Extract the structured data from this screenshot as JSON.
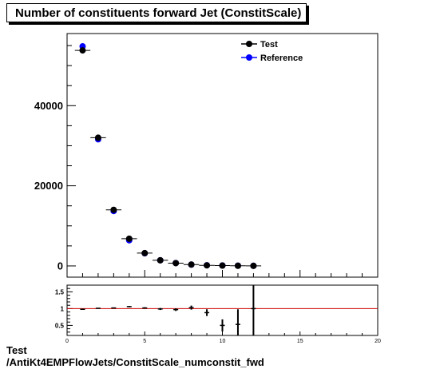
{
  "title": "Number of constituents forward Jet (ConstitScale)",
  "footer": {
    "line1": "Test",
    "line2": "/AntiKt4EMPFlowJets/ConstitScale_numconstit_fwd"
  },
  "colors": {
    "test": "#000000",
    "reference": "#0000ff",
    "ratio_line": "#cc0000"
  },
  "chart_data": [
    {
      "type": "scatter",
      "panel": "main",
      "title": "Number of constituents forward Jet (ConstitScale)",
      "xlim": [
        0,
        20
      ],
      "ylim": [
        -2800,
        58000
      ],
      "yticks": [
        0,
        20000,
        40000
      ],
      "ytick_labels": [
        "0",
        "20000",
        "40000"
      ],
      "legend_position": "top-right",
      "grid": false,
      "x": [
        1,
        2,
        3,
        4,
        5,
        6,
        7,
        8,
        9,
        10,
        11,
        12
      ],
      "series": [
        {
          "name": "Test",
          "values": [
            53800,
            32000,
            14000,
            6800,
            3200,
            1400,
            700,
            350,
            150,
            80,
            40,
            20
          ]
        },
        {
          "name": "Reference",
          "values": [
            54800,
            31600,
            13700,
            6400,
            3150,
            1420,
            720,
            340,
            170,
            120,
            75,
            30
          ]
        }
      ]
    },
    {
      "type": "scatter",
      "panel": "ratio",
      "xlim": [
        0,
        20
      ],
      "ylim": [
        0.2,
        1.7
      ],
      "xticks": [
        0,
        5,
        10,
        15,
        20
      ],
      "xtick_labels": [
        "0",
        "5",
        "10",
        "15",
        "20"
      ],
      "yticks": [
        0.5,
        1,
        1.5
      ],
      "ytick_labels": [
        "0.5",
        "1",
        "1.5"
      ],
      "reference_line": 1,
      "x": [
        1,
        2,
        3,
        4,
        5,
        6,
        7,
        8,
        9,
        10,
        11,
        12
      ],
      "values": [
        0.98,
        1.01,
        1.02,
        1.06,
        1.02,
        0.99,
        0.97,
        1.03,
        0.88,
        0.5,
        0.53,
        1.0
      ],
      "errors": [
        0.005,
        0.008,
        0.012,
        0.018,
        0.02,
        0.03,
        0.04,
        0.06,
        0.1,
        0.18,
        0.45,
        1.6
      ]
    }
  ]
}
